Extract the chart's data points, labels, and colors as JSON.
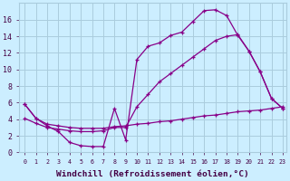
{
  "background_color": "#cceeff",
  "grid_color": "#aaccdd",
  "line_color": "#880088",
  "xlim_min": -0.5,
  "xlim_max": 23.3,
  "ylim_min": 0,
  "ylim_max": 18,
  "xlabel": "Windchill (Refroidissement éolien,°C)",
  "xtick_labels": [
    "0",
    "1",
    "2",
    "3",
    "4",
    "5",
    "6",
    "7",
    "8",
    "9",
    "10",
    "11",
    "12",
    "13",
    "14",
    "15",
    "16",
    "17",
    "18",
    "19",
    "20",
    "21",
    "22",
    "23"
  ],
  "ytick_values": [
    0,
    2,
    4,
    6,
    8,
    10,
    12,
    14,
    16
  ],
  "curve1_x": [
    0,
    1,
    2,
    3,
    4,
    5,
    6,
    7,
    8,
    9,
    10,
    11,
    12,
    13,
    14,
    15,
    16,
    17,
    18,
    19,
    20,
    21,
    22,
    23
  ],
  "curve1_y": [
    5.8,
    4.1,
    3.2,
    2.5,
    1.2,
    0.8,
    0.7,
    0.7,
    5.3,
    1.5,
    11.2,
    12.8,
    13.2,
    14.1,
    14.5,
    15.8,
    17.1,
    17.2,
    16.5,
    14.1,
    12.2,
    9.7,
    6.5,
    5.3
  ],
  "curve2_x": [
    0,
    1,
    2,
    3,
    4,
    5,
    6,
    7,
    8,
    9,
    10,
    11,
    12,
    13,
    14,
    15,
    16,
    17,
    18,
    19,
    20,
    21,
    22,
    23
  ],
  "curve2_y": [
    4.1,
    3.5,
    3.0,
    2.8,
    2.6,
    2.5,
    2.5,
    2.6,
    3.0,
    3.0,
    5.5,
    7.0,
    8.5,
    9.5,
    10.5,
    11.5,
    12.5,
    13.5,
    14.0,
    14.2,
    12.2,
    9.7,
    6.5,
    5.3
  ],
  "curve3_x": [
    0,
    1,
    2,
    3,
    4,
    5,
    6,
    7,
    8,
    9,
    10,
    11,
    12,
    13,
    14,
    15,
    16,
    17,
    18,
    19,
    20,
    21,
    22,
    23
  ],
  "curve3_y": [
    5.8,
    4.1,
    3.4,
    3.2,
    3.0,
    2.9,
    2.9,
    2.9,
    3.1,
    3.2,
    3.4,
    3.5,
    3.7,
    3.8,
    4.0,
    4.2,
    4.4,
    4.5,
    4.7,
    4.9,
    5.0,
    5.1,
    5.3,
    5.5
  ]
}
